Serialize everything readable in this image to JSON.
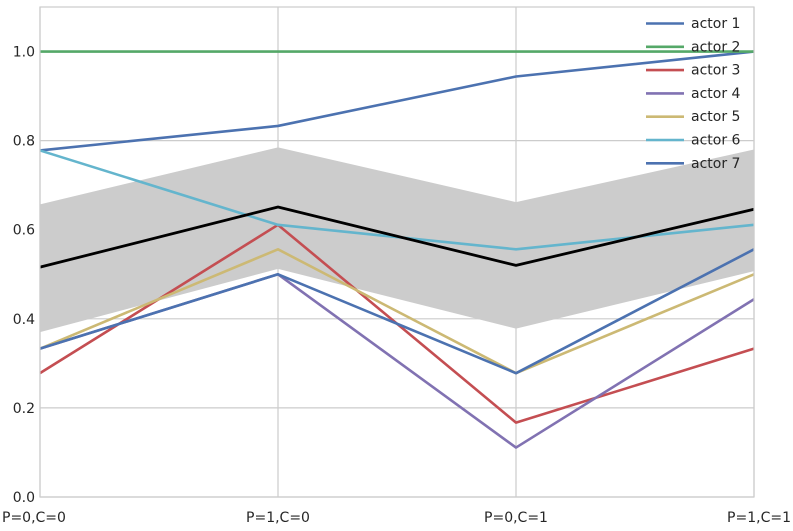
{
  "chart_data": {
    "type": "line",
    "title": "",
    "xlabel": "",
    "ylabel": "",
    "categories": [
      "P=0,C=0",
      "P=1,C=0",
      "P=0,C=1",
      "P=1,C=1"
    ],
    "ylim": [
      0.0,
      1.1
    ],
    "yticks": [
      {
        "value": 0.0,
        "label": "0.0"
      },
      {
        "value": 0.2,
        "label": "0.2"
      },
      {
        "value": 0.4,
        "label": "0.4"
      },
      {
        "value": 0.6,
        "label": "0.6"
      },
      {
        "value": 0.8,
        "label": "0.8"
      },
      {
        "value": 1.0,
        "label": "1.0"
      }
    ],
    "grid": true,
    "legend_position": "top-right",
    "series": [
      {
        "name": "actor 1",
        "color": "#4c72b0",
        "values": [
          0.778,
          0.833,
          0.944,
          1.0
        ]
      },
      {
        "name": "actor 2",
        "color": "#55a868",
        "values": [
          1.0,
          1.0,
          1.0,
          1.0
        ]
      },
      {
        "name": "actor 3",
        "color": "#c44e52",
        "values": [
          0.278,
          0.611,
          0.167,
          0.333
        ]
      },
      {
        "name": "actor 4",
        "color": "#8172b2",
        "values": [
          0.333,
          0.5,
          0.111,
          0.444
        ]
      },
      {
        "name": "actor 5",
        "color": "#ccb974",
        "values": [
          0.333,
          0.556,
          0.278,
          0.5
        ]
      },
      {
        "name": "actor 6",
        "color": "#64b5cd",
        "values": [
          0.778,
          0.611,
          0.556,
          0.611
        ]
      },
      {
        "name": "actor 7",
        "color": "#4c72b0",
        "values": [
          0.333,
          0.5,
          0.278,
          0.556
        ]
      }
    ],
    "mean": {
      "color": "#000000",
      "values": [
        0.516,
        0.651,
        0.52,
        0.646
      ]
    },
    "band": {
      "color": "#cccccc",
      "lower": [
        0.37,
        0.512,
        0.378,
        0.507
      ],
      "upper": [
        0.657,
        0.785,
        0.662,
        0.78
      ]
    }
  }
}
